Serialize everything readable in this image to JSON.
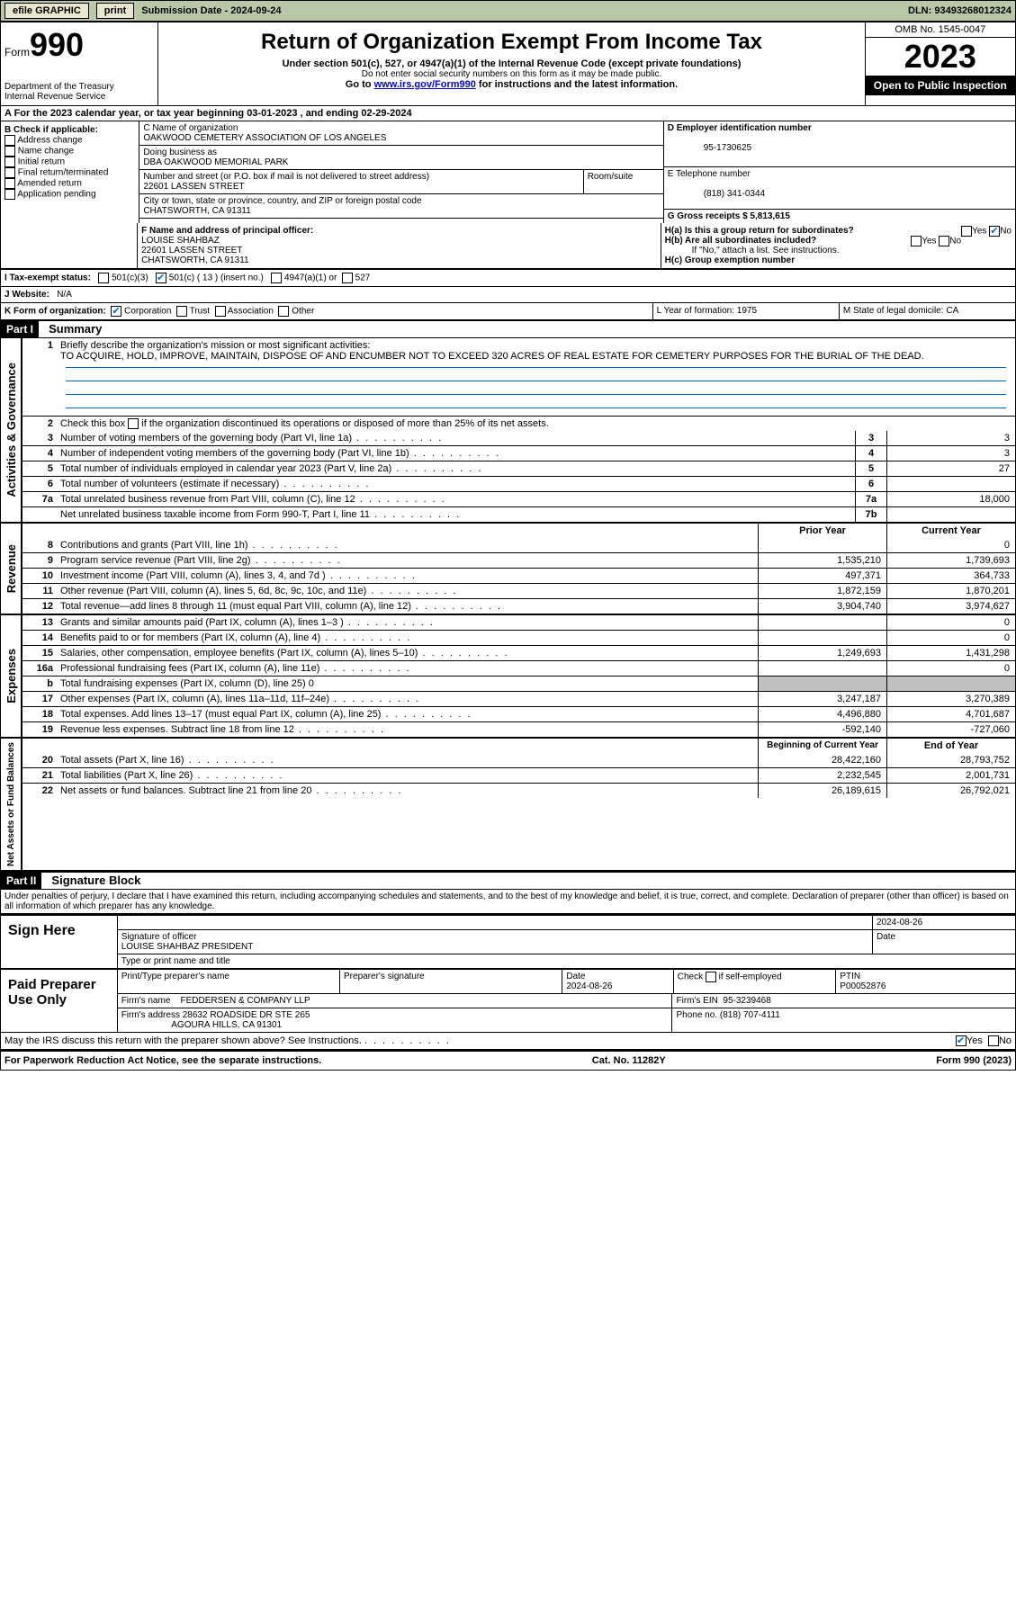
{
  "topbar": {
    "efile": "efile GRAPHIC",
    "print": "print",
    "submission": "Submission Date - 2024-09-24",
    "dln": "DLN: 93493268012324"
  },
  "header": {
    "form_prefix": "Form",
    "form_number": "990",
    "dept": "Department of the Treasury\nInternal Revenue Service",
    "title": "Return of Organization Exempt From Income Tax",
    "sub": "Under section 501(c), 527, or 4947(a)(1) of the Internal Revenue Code (except private foundations)",
    "note1": "Do not enter social security numbers on this form as it may be made public.",
    "note2_prefix": "Go to ",
    "note2_link": "www.irs.gov/Form990",
    "note2_suffix": " for instructions and the latest information.",
    "omb": "OMB No. 1545-0047",
    "year": "2023",
    "inspection": "Open to Public Inspection"
  },
  "period": {
    "text": "A For the 2023 calendar year, or tax year beginning 03-01-2023    , and ending 02-29-2024"
  },
  "section_b": {
    "label": "B Check if applicable:",
    "items": [
      "Address change",
      "Name change",
      "Initial return",
      "Final return/terminated",
      "Amended return",
      "Application pending"
    ]
  },
  "section_c": {
    "name_label": "C Name of organization",
    "name": "OAKWOOD CEMETERY ASSOCIATION OF LOS ANGELES",
    "dba_label": "Doing business as",
    "dba": "DBA OAKWOOD MEMORIAL PARK",
    "street_label": "Number and street (or P.O. box if mail is not delivered to street address)",
    "street": "22601 LASSEN STREET",
    "room_label": "Room/suite",
    "city_label": "City or town, state or province, country, and ZIP or foreign postal code",
    "city": "CHATSWORTH, CA  91311"
  },
  "section_d": {
    "label": "D Employer identification number",
    "value": "95-1730625"
  },
  "section_e": {
    "label": "E Telephone number",
    "value": "(818) 341-0344"
  },
  "section_g": {
    "label": "G Gross receipts $ 5,813,615"
  },
  "section_f": {
    "label": "F  Name and address of principal officer:",
    "name": "LOUISE SHAHBAZ",
    "street": "22601 LASSEN STREET",
    "city": "CHATSWORTH, CA  91311"
  },
  "section_h": {
    "ha": "H(a)  Is this a group return for subordinates?",
    "hb": "H(b)  Are all subordinates included?",
    "hb_note": "If \"No,\" attach a list. See instructions.",
    "hc": "H(c)  Group exemption number",
    "yes": "Yes",
    "no": "No"
  },
  "section_i": {
    "label": "I    Tax-exempt status:",
    "o1": "501(c)(3)",
    "o2": "501(c) ( 13 ) (insert no.)",
    "o3": "4947(a)(1) or",
    "o4": "527"
  },
  "section_j": {
    "label": "J    Website:",
    "value": "N/A"
  },
  "section_k": {
    "label": "K Form of organization:",
    "o1": "Corporation",
    "o2": "Trust",
    "o3": "Association",
    "o4": "Other"
  },
  "section_l": {
    "label": "L Year of formation: 1975"
  },
  "section_m": {
    "label": "M State of legal domicile: CA"
  },
  "part1": {
    "header": "Part I",
    "title": "Summary",
    "line1_label": "Briefly describe the organization's mission or most significant activities:",
    "line1_text": "TO ACQUIRE, HOLD, IMPROVE, MAINTAIN, DISPOSE OF AND ENCUMBER NOT TO EXCEED 320 ACRES OF REAL ESTATE FOR CEMETERY PURPOSES FOR THE BURIAL OF THE DEAD.",
    "line2": "Check this box          if the organization discontinued its operations or disposed of more than 25% of its net assets.",
    "lines_ag": [
      {
        "n": "3",
        "t": "Number of voting members of the governing body (Part VI, line 1a)",
        "b": "3",
        "v": "3"
      },
      {
        "n": "4",
        "t": "Number of independent voting members of the governing body (Part VI, line 1b)",
        "b": "4",
        "v": "3"
      },
      {
        "n": "5",
        "t": "Total number of individuals employed in calendar year 2023 (Part V, line 2a)",
        "b": "5",
        "v": "27"
      },
      {
        "n": "6",
        "t": "Total number of volunteers (estimate if necessary)",
        "b": "6",
        "v": ""
      },
      {
        "n": "7a",
        "t": "Total unrelated business revenue from Part VIII, column (C), line 12",
        "b": "7a",
        "v": "18,000"
      },
      {
        "n": "",
        "t": "Net unrelated business taxable income from Form 990-T, Part I, line 11",
        "b": "7b",
        "v": ""
      }
    ],
    "side_ag": "Activities & Governance",
    "col_prior": "Prior Year",
    "col_current": "Current Year",
    "side_rev": "Revenue",
    "lines_rev": [
      {
        "n": "8",
        "t": "Contributions and grants (Part VIII, line 1h)",
        "p": "",
        "c": "0"
      },
      {
        "n": "9",
        "t": "Program service revenue (Part VIII, line 2g)",
        "p": "1,535,210",
        "c": "1,739,693"
      },
      {
        "n": "10",
        "t": "Investment income (Part VIII, column (A), lines 3, 4, and 7d )",
        "p": "497,371",
        "c": "364,733"
      },
      {
        "n": "11",
        "t": "Other revenue (Part VIII, column (A), lines 5, 6d, 8c, 9c, 10c, and 11e)",
        "p": "1,872,159",
        "c": "1,870,201"
      },
      {
        "n": "12",
        "t": "Total revenue—add lines 8 through 11 (must equal Part VIII, column (A), line 12)",
        "p": "3,904,740",
        "c": "3,974,627"
      }
    ],
    "side_exp": "Expenses",
    "lines_exp": [
      {
        "n": "13",
        "t": "Grants and similar amounts paid (Part IX, column (A), lines 1–3 )",
        "p": "",
        "c": "0"
      },
      {
        "n": "14",
        "t": "Benefits paid to or for members (Part IX, column (A), line 4)",
        "p": "",
        "c": "0"
      },
      {
        "n": "15",
        "t": "Salaries, other compensation, employee benefits (Part IX, column (A), lines 5–10)",
        "p": "1,249,693",
        "c": "1,431,298"
      },
      {
        "n": "16a",
        "t": "Professional fundraising fees (Part IX, column (A), line 11e)",
        "p": "",
        "c": "0"
      },
      {
        "n": "b",
        "t": "Total fundraising expenses (Part IX, column (D), line 25) 0",
        "p": "GREY",
        "c": "GREY"
      },
      {
        "n": "17",
        "t": "Other expenses (Part IX, column (A), lines 11a–11d, 11f–24e)",
        "p": "3,247,187",
        "c": "3,270,389"
      },
      {
        "n": "18",
        "t": "Total expenses. Add lines 13–17 (must equal Part IX, column (A), line 25)",
        "p": "4,496,880",
        "c": "4,701,687"
      },
      {
        "n": "19",
        "t": "Revenue less expenses. Subtract line 18 from line 12",
        "p": "-592,140",
        "c": "-727,060"
      }
    ],
    "side_net": "Net Assets or Fund Balances",
    "col_begin": "Beginning of Current Year",
    "col_end": "End of Year",
    "lines_net": [
      {
        "n": "20",
        "t": "Total assets (Part X, line 16)",
        "p": "28,422,160",
        "c": "28,793,752"
      },
      {
        "n": "21",
        "t": "Total liabilities (Part X, line 26)",
        "p": "2,232,545",
        "c": "2,001,731"
      },
      {
        "n": "22",
        "t": "Net assets or fund balances. Subtract line 21 from line 20",
        "p": "26,189,615",
        "c": "26,792,021"
      }
    ]
  },
  "part2": {
    "header": "Part II",
    "title": "Signature Block",
    "penalty": "Under penalties of perjury, I declare that I have examined this return, including accompanying schedules and statements, and to the best of my knowledge and belief, it is true, correct, and complete. Declaration of preparer (other than officer) is based on all information of which preparer has any knowledge."
  },
  "sign": {
    "here": "Sign Here",
    "sig_officer": "Signature of officer",
    "officer": "LOUISE SHAHBAZ PRESIDENT",
    "title_label": "Type or print name and title",
    "date": "2024-08-26",
    "date_label": "Date"
  },
  "paid": {
    "label": "Paid Preparer Use Only",
    "name_label": "Print/Type preparer's name",
    "sig_label": "Preparer's signature",
    "date_label": "Date",
    "date": "2024-08-26",
    "check_label": "Check         if self-employed",
    "ptin_label": "PTIN",
    "ptin": "P00052876",
    "firm_name_label": "Firm's name",
    "firm_name": "FEDDERSEN & COMPANY LLP",
    "firm_ein_label": "Firm's EIN",
    "firm_ein": "95-3239468",
    "firm_addr_label": "Firm's address",
    "firm_addr": "28632 ROADSIDE DR STE 265",
    "firm_city": "AGOURA HILLS, CA  91301",
    "phone_label": "Phone no.",
    "phone": "(818) 707-4111"
  },
  "discuss": "May the IRS discuss this return with the preparer shown above? See Instructions.",
  "footer": {
    "left": "For Paperwork Reduction Act Notice, see the separate instructions.",
    "mid": "Cat. No. 11282Y",
    "right": "Form 990 (2023)"
  }
}
